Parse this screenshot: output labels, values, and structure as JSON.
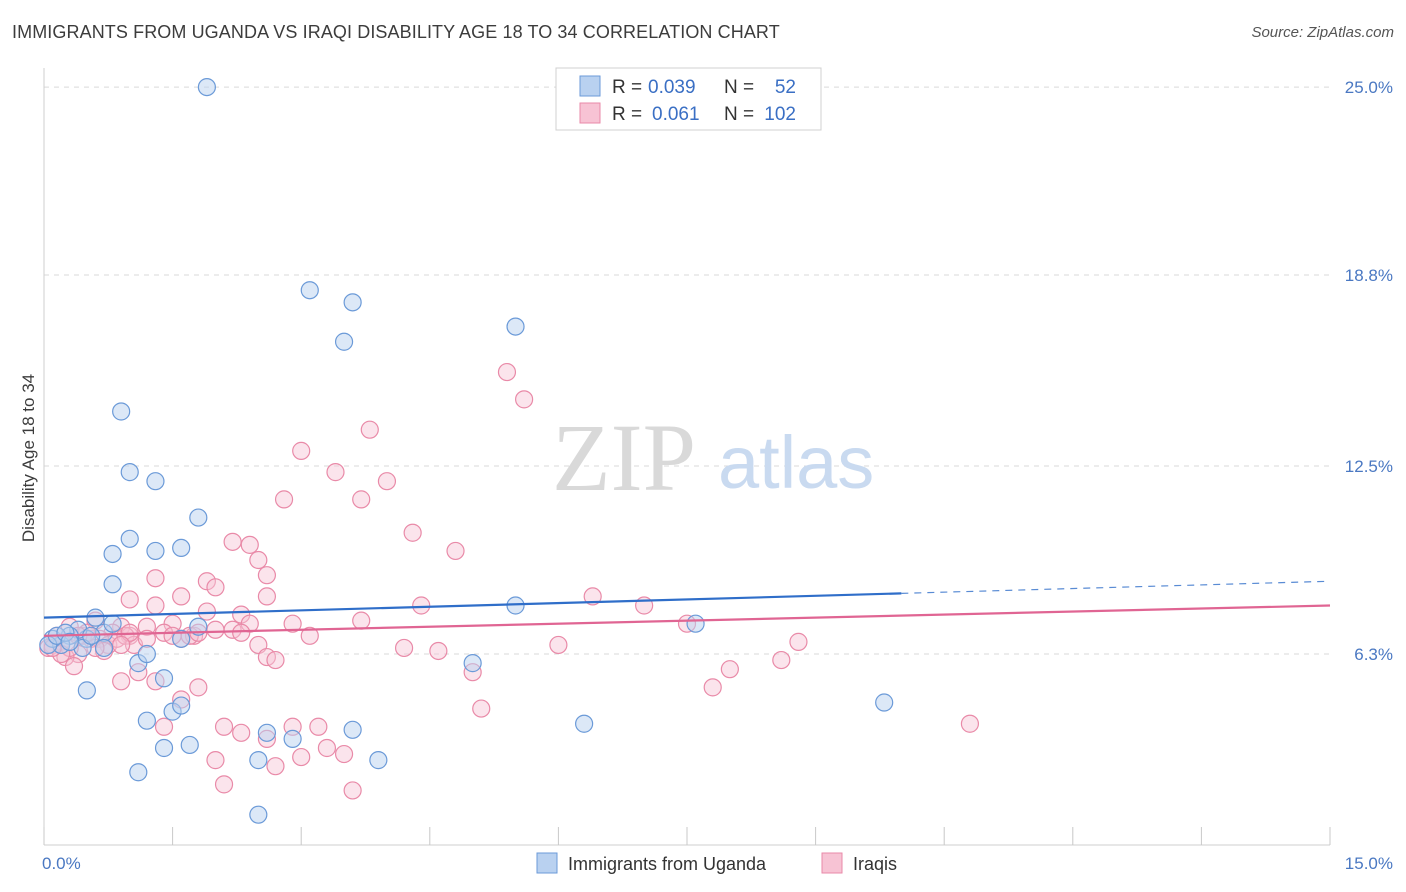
{
  "title": "IMMIGRANTS FROM UGANDA VS IRAQI DISABILITY AGE 18 TO 34 CORRELATION CHART",
  "source": "Source: ZipAtlas.com",
  "watermark": {
    "zip": "ZIP",
    "atlas": "atlas"
  },
  "colors": {
    "blue_fill": "#b9d1f0",
    "blue_stroke": "#6b9ad8",
    "blue_line": "#2f6ec9",
    "pink_fill": "#f7c3d4",
    "pink_stroke": "#e98aa8",
    "pink_line": "#e06593",
    "grid": "#d9d9d9",
    "tick_text": "#4a78c2"
  },
  "legend": {
    "rows": [
      {
        "r_label": "R =",
        "r_value": "0.039",
        "n_label": "N =",
        "n_value": "52",
        "series": "blue"
      },
      {
        "r_label": "R =",
        "r_value": "0.061",
        "n_label": "N =",
        "n_value": "102",
        "series": "pink"
      }
    ]
  },
  "chart_data": {
    "type": "scatter",
    "title": "IMMIGRANTS FROM UGANDA VS IRAQI DISABILITY AGE 18 TO 34 CORRELATION CHART",
    "xlabel": "",
    "ylabel": "Disability Age 18 to 34",
    "xlim": [
      0,
      15
    ],
    "ylim": [
      0,
      25.3
    ],
    "x_tick_labels": [
      "0.0%",
      "15.0%"
    ],
    "y_ticks": [
      6.3,
      12.5,
      18.8,
      25.0
    ],
    "y_tick_labels": [
      "6.3%",
      "12.5%",
      "18.8%",
      "25.0%"
    ],
    "grid": true,
    "legend_position": "top-center",
    "series": [
      {
        "name": "Immigrants from Uganda",
        "color": "#6b9ad8",
        "trend": {
          "x": [
            0,
            10,
            15
          ],
          "y": [
            7.5,
            8.3,
            8.7
          ],
          "solid_until": 10
        },
        "points": [
          [
            1.9,
            25.0
          ],
          [
            3.1,
            18.3
          ],
          [
            3.6,
            17.9
          ],
          [
            5.5,
            17.1
          ],
          [
            3.5,
            16.6
          ],
          [
            0.9,
            14.3
          ],
          [
            1.0,
            12.3
          ],
          [
            1.3,
            12.0
          ],
          [
            1.8,
            10.8
          ],
          [
            1.0,
            10.1
          ],
          [
            0.8,
            9.6
          ],
          [
            1.3,
            9.7
          ],
          [
            1.6,
            9.8
          ],
          [
            0.8,
            8.6
          ],
          [
            0.6,
            7.5
          ],
          [
            0.7,
            7.0
          ],
          [
            0.5,
            6.8
          ],
          [
            0.4,
            7.1
          ],
          [
            0.3,
            6.9
          ],
          [
            0.2,
            6.6
          ],
          [
            0.1,
            6.8
          ],
          [
            0.05,
            6.6
          ],
          [
            0.15,
            6.9
          ],
          [
            0.25,
            7.0
          ],
          [
            0.45,
            6.5
          ],
          [
            0.55,
            6.9
          ],
          [
            0.7,
            6.5
          ],
          [
            1.1,
            6.0
          ],
          [
            1.2,
            6.3
          ],
          [
            0.5,
            5.1
          ],
          [
            1.4,
            5.5
          ],
          [
            1.5,
            4.4
          ],
          [
            1.6,
            4.6
          ],
          [
            1.2,
            4.1
          ],
          [
            1.8,
            7.2
          ],
          [
            1.6,
            6.8
          ],
          [
            1.4,
            3.2
          ],
          [
            1.7,
            3.3
          ],
          [
            2.6,
            3.7
          ],
          [
            2.9,
            3.5
          ],
          [
            3.6,
            3.8
          ],
          [
            3.9,
            2.8
          ],
          [
            2.5,
            2.8
          ],
          [
            1.1,
            2.4
          ],
          [
            2.5,
            1.0
          ],
          [
            5.5,
            7.9
          ],
          [
            5.0,
            6.0
          ],
          [
            6.3,
            4.0
          ],
          [
            7.6,
            7.3
          ],
          [
            9.8,
            4.7
          ],
          [
            0.8,
            7.3
          ],
          [
            0.3,
            6.7
          ]
        ]
      },
      {
        "name": "Iraqis",
        "color": "#e98aa8",
        "trend": {
          "x": [
            0,
            15
          ],
          "y": [
            6.9,
            7.9
          ]
        },
        "points": [
          [
            5.4,
            15.6
          ],
          [
            5.6,
            14.7
          ],
          [
            3.8,
            13.7
          ],
          [
            3.0,
            13.0
          ],
          [
            3.4,
            12.3
          ],
          [
            4.0,
            12.0
          ],
          [
            2.8,
            11.4
          ],
          [
            3.7,
            11.4
          ],
          [
            4.3,
            10.3
          ],
          [
            4.8,
            9.7
          ],
          [
            2.2,
            10.0
          ],
          [
            2.4,
            9.9
          ],
          [
            2.5,
            9.4
          ],
          [
            2.6,
            8.9
          ],
          [
            1.3,
            8.8
          ],
          [
            1.9,
            8.7
          ],
          [
            2.0,
            8.5
          ],
          [
            1.0,
            8.1
          ],
          [
            1.6,
            8.2
          ],
          [
            2.6,
            8.2
          ],
          [
            1.3,
            7.9
          ],
          [
            1.9,
            7.7
          ],
          [
            2.3,
            7.6
          ],
          [
            2.4,
            7.3
          ],
          [
            1.5,
            7.3
          ],
          [
            1.2,
            7.2
          ],
          [
            0.9,
            7.2
          ],
          [
            0.6,
            7.4
          ],
          [
            0.8,
            7.0
          ],
          [
            1.0,
            6.9
          ],
          [
            0.3,
            7.2
          ],
          [
            0.45,
            6.9
          ],
          [
            0.55,
            6.8
          ],
          [
            0.65,
            6.8
          ],
          [
            0.75,
            6.6
          ],
          [
            0.85,
            6.8
          ],
          [
            0.95,
            6.9
          ],
          [
            1.05,
            6.6
          ],
          [
            0.4,
            6.3
          ],
          [
            0.2,
            6.7
          ],
          [
            0.1,
            6.6
          ],
          [
            0.05,
            6.5
          ],
          [
            0.15,
            6.9
          ],
          [
            0.25,
            6.2
          ],
          [
            0.35,
            5.9
          ],
          [
            1.4,
            7.0
          ],
          [
            1.6,
            6.8
          ],
          [
            1.75,
            6.9
          ],
          [
            2.2,
            7.1
          ],
          [
            2.5,
            6.6
          ],
          [
            2.6,
            6.2
          ],
          [
            2.7,
            6.1
          ],
          [
            1.1,
            5.7
          ],
          [
            1.3,
            5.4
          ],
          [
            0.9,
            5.4
          ],
          [
            1.8,
            5.2
          ],
          [
            1.6,
            4.8
          ],
          [
            1.4,
            3.9
          ],
          [
            2.1,
            3.9
          ],
          [
            2.3,
            3.7
          ],
          [
            2.6,
            3.5
          ],
          [
            2.7,
            2.6
          ],
          [
            2.9,
            3.9
          ],
          [
            3.2,
            3.9
          ],
          [
            3.3,
            3.2
          ],
          [
            3.5,
            3.0
          ],
          [
            3.0,
            2.9
          ],
          [
            2.0,
            2.8
          ],
          [
            3.6,
            1.8
          ],
          [
            2.1,
            2.0
          ],
          [
            4.2,
            6.5
          ],
          [
            4.6,
            6.4
          ],
          [
            5.0,
            5.7
          ],
          [
            5.1,
            4.5
          ],
          [
            3.7,
            7.4
          ],
          [
            4.4,
            7.9
          ],
          [
            6.0,
            6.6
          ],
          [
            6.4,
            8.2
          ],
          [
            7.0,
            7.9
          ],
          [
            7.5,
            7.3
          ],
          [
            7.8,
            5.2
          ],
          [
            8.0,
            5.8
          ],
          [
            8.6,
            6.1
          ],
          [
            8.8,
            6.7
          ],
          [
            10.8,
            4.0
          ],
          [
            1.7,
            6.9
          ],
          [
            2.0,
            7.1
          ],
          [
            0.5,
            7.0
          ],
          [
            0.7,
            6.4
          ],
          [
            1.0,
            7.0
          ],
          [
            0.9,
            6.6
          ],
          [
            0.6,
            6.5
          ],
          [
            0.3,
            6.5
          ],
          [
            0.4,
            6.9
          ],
          [
            0.2,
            6.3
          ],
          [
            0.1,
            6.5
          ],
          [
            1.2,
            6.8
          ],
          [
            1.5,
            6.9
          ],
          [
            1.8,
            7.0
          ],
          [
            2.3,
            7.0
          ],
          [
            2.9,
            7.3
          ],
          [
            3.1,
            6.9
          ]
        ]
      }
    ]
  },
  "bottom_legend": [
    {
      "label": "Immigrants from Uganda",
      "series": "blue"
    },
    {
      "label": "Iraqis",
      "series": "pink"
    }
  ]
}
